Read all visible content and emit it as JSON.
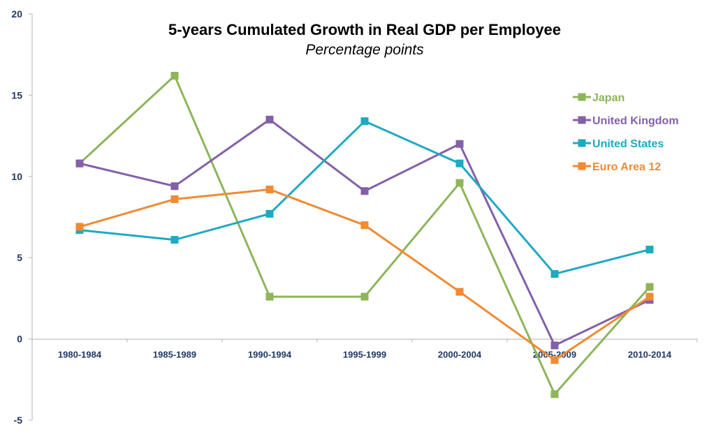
{
  "chart_data": {
    "type": "line",
    "title": "5-years Cumulated Growth in Real GDP per Employee",
    "subtitle": "Percentage points",
    "xlabel": "",
    "ylabel": "",
    "categories": [
      "1980-1984",
      "1985-1989",
      "1990-1994",
      "1995-1999",
      "2000-2004",
      "2005-2009",
      "2010-2014"
    ],
    "ylim": [
      -5,
      20
    ],
    "yticks": [
      -5,
      0,
      5,
      10,
      15,
      20
    ],
    "grid": false,
    "legend_position": "top-right",
    "series": [
      {
        "name": "Japan",
        "color": "#8db55a",
        "values": [
          10.8,
          16.2,
          2.6,
          2.6,
          9.6,
          -3.4,
          3.2
        ]
      },
      {
        "name": "United Kingdom",
        "color": "#8460a8",
        "values": [
          10.8,
          9.4,
          13.5,
          9.1,
          12.0,
          -0.4,
          2.4
        ]
      },
      {
        "name": "United States",
        "color": "#1fa9c2",
        "values": [
          6.7,
          6.1,
          7.7,
          13.4,
          10.8,
          4.0,
          5.5
        ]
      },
      {
        "name": "Euro Area 12",
        "color": "#f08a34",
        "values": [
          6.9,
          8.6,
          9.2,
          7.0,
          2.9,
          -1.3,
          2.6
        ]
      }
    ]
  }
}
